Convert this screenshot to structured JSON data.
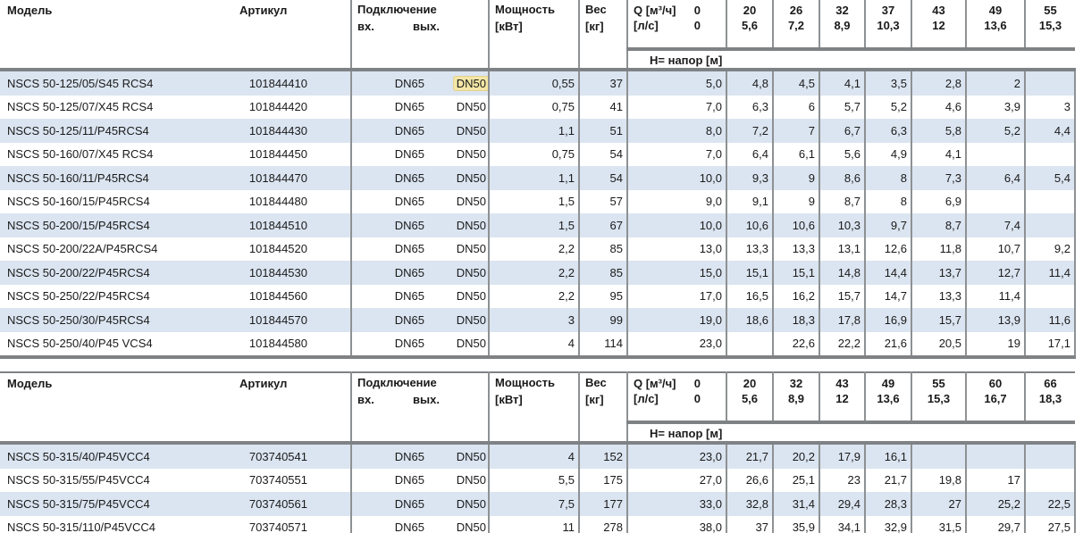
{
  "colors": {
    "stripe_blue": "#dbe5f1",
    "grid_gray": "#8e9193",
    "rule_gray": "#7f8285",
    "highlight_yellow": "#f3e6a6",
    "text": "#1a1a1a"
  },
  "tables": [
    {
      "headers": {
        "model": "Модель",
        "article": "Артикул",
        "connection": "Подключение",
        "inlet": "вх.",
        "outlet": "вых.",
        "power_l1": "Мощность",
        "power_l2": "[кВт]",
        "weight_l1": "Вес",
        "weight_l2": "[кг]"
      },
      "q_header": {
        "q_label": "Q [м³/ч]",
        "q_zero": "0",
        "ls_label": "[л/с]",
        "ls_zero": "0",
        "flows": [
          {
            "m3h": "20",
            "ls": "5,6"
          },
          {
            "m3h": "26",
            "ls": "7,2"
          },
          {
            "m3h": "32",
            "ls": "8,9"
          },
          {
            "m3h": "37",
            "ls": "10,3"
          },
          {
            "m3h": "43",
            "ls": "12"
          },
          {
            "m3h": "49",
            "ls": "13,6"
          },
          {
            "m3h": "55",
            "ls": "15,3"
          }
        ]
      },
      "h_band": "H= напор [м]",
      "rows": [
        {
          "model": "NSCS 50-125/05/S45 RCS4",
          "article": "101844410",
          "conn_in": "DN65",
          "conn_out": "DN50",
          "out_highlighted": true,
          "power": "0,55",
          "weight": "37",
          "heads": [
            "5,0",
            "4,8",
            "4,5",
            "4,1",
            "3,5",
            "2,8",
            "2",
            ""
          ]
        },
        {
          "model": "NSCS 50-125/07/X45 RCS4",
          "article": "101844420",
          "conn_in": "DN65",
          "conn_out": "DN50",
          "power": "0,75",
          "weight": "41",
          "heads": [
            "7,0",
            "6,3",
            "6",
            "5,7",
            "5,2",
            "4,6",
            "3,9",
            "3"
          ]
        },
        {
          "model": "NSCS 50-125/11/P45RCS4",
          "article": "101844430",
          "conn_in": "DN65",
          "conn_out": "DN50",
          "power": "1,1",
          "weight": "51",
          "heads": [
            "8,0",
            "7,2",
            "7",
            "6,7",
            "6,3",
            "5,8",
            "5,2",
            "4,4"
          ]
        },
        {
          "model": "NSCS 50-160/07/X45 RCS4",
          "article": "101844450",
          "conn_in": "DN65",
          "conn_out": "DN50",
          "power": "0,75",
          "weight": "54",
          "heads": [
            "7,0",
            "6,4",
            "6,1",
            "5,6",
            "4,9",
            "4,1",
            "",
            ""
          ]
        },
        {
          "model": "NSCS 50-160/11/P45RCS4",
          "article": "101844470",
          "conn_in": "DN65",
          "conn_out": "DN50",
          "power": "1,1",
          "weight": "54",
          "heads": [
            "10,0",
            "9,3",
            "9",
            "8,6",
            "8",
            "7,3",
            "6,4",
            "5,4"
          ]
        },
        {
          "model": "NSCS 50-160/15/P45RCS4",
          "article": "101844480",
          "conn_in": "DN65",
          "conn_out": "DN50",
          "power": "1,5",
          "weight": "57",
          "heads": [
            "9,0",
            "9,1",
            "9",
            "8,7",
            "8",
            "6,9",
            "",
            ""
          ]
        },
        {
          "model": "NSCS 50-200/15/P45RCS4",
          "article": "101844510",
          "conn_in": "DN65",
          "conn_out": "DN50",
          "power": "1,5",
          "weight": "67",
          "heads": [
            "10,0",
            "10,6",
            "10,6",
            "10,3",
            "9,7",
            "8,7",
            "7,4",
            ""
          ]
        },
        {
          "model": "NSCS 50-200/22A/P45RCS4",
          "article": "101844520",
          "conn_in": "DN65",
          "conn_out": "DN50",
          "power": "2,2",
          "weight": "85",
          "heads": [
            "13,0",
            "13,3",
            "13,3",
            "13,1",
            "12,6",
            "11,8",
            "10,7",
            "9,2"
          ]
        },
        {
          "model": "NSCS 50-200/22/P45RCS4",
          "article": "101844530",
          "conn_in": "DN65",
          "conn_out": "DN50",
          "power": "2,2",
          "weight": "85",
          "heads": [
            "15,0",
            "15,1",
            "15,1",
            "14,8",
            "14,4",
            "13,7",
            "12,7",
            "11,4"
          ]
        },
        {
          "model": "NSCS 50-250/22/P45RCS4",
          "article": "101844560",
          "conn_in": "DN65",
          "conn_out": "DN50",
          "power": "2,2",
          "weight": "95",
          "heads": [
            "17,0",
            "16,5",
            "16,2",
            "15,7",
            "14,7",
            "13,3",
            "11,4",
            ""
          ]
        },
        {
          "model": "NSCS 50-250/30/P45RCS4",
          "article": "101844570",
          "conn_in": "DN65",
          "conn_out": "DN50",
          "power": "3",
          "weight": "99",
          "heads": [
            "19,0",
            "18,6",
            "18,3",
            "17,8",
            "16,9",
            "15,7",
            "13,9",
            "11,6"
          ]
        },
        {
          "model": "NSCS 50-250/40/P45 VCS4",
          "article": "101844580",
          "conn_in": "DN65",
          "conn_out": "DN50",
          "power": "4",
          "weight": "114",
          "heads": [
            "23,0",
            "",
            "22,6",
            "22,2",
            "21,6",
            "20,5",
            "19",
            "17,1"
          ]
        }
      ]
    },
    {
      "headers": {
        "model": "Модель",
        "article": "Артикул",
        "connection": "Подключение",
        "inlet": "вх.",
        "outlet": "вых.",
        "power_l1": "Мощность",
        "power_l2": "[кВт]",
        "weight_l1": "Вес",
        "weight_l2": "[кг]"
      },
      "q_header": {
        "q_label": "Q [м³/ч]",
        "q_zero": "0",
        "ls_label": "[л/с]",
        "ls_zero": "0",
        "flows": [
          {
            "m3h": "20",
            "ls": "5,6"
          },
          {
            "m3h": "32",
            "ls": "8,9"
          },
          {
            "m3h": "43",
            "ls": "12"
          },
          {
            "m3h": "49",
            "ls": "13,6"
          },
          {
            "m3h": "55",
            "ls": "15,3"
          },
          {
            "m3h": "60",
            "ls": "16,7"
          },
          {
            "m3h": "66",
            "ls": "18,3"
          }
        ]
      },
      "h_band": "H= напор [м]",
      "rows": [
        {
          "model": "NSCS 50-315/40/P45VCC4",
          "article": "703740541",
          "conn_in": "DN65",
          "conn_out": "DN50",
          "power": "4",
          "weight": "152",
          "heads": [
            "23,0",
            "21,7",
            "20,2",
            "17,9",
            "16,1",
            "",
            "",
            ""
          ]
        },
        {
          "model": "NSCS 50-315/55/P45VCC4",
          "article": "703740551",
          "conn_in": "DN65",
          "conn_out": "DN50",
          "power": "5,5",
          "weight": "175",
          "heads": [
            "27,0",
            "26,6",
            "25,1",
            "23",
            "21,7",
            "19,8",
            "17",
            ""
          ]
        },
        {
          "model": "NSCS 50-315/75/P45VCC4",
          "article": "703740561",
          "conn_in": "DN65",
          "conn_out": "DN50",
          "power": "7,5",
          "weight": "177",
          "heads": [
            "33,0",
            "32,8",
            "31,4",
            "29,4",
            "28,3",
            "27",
            "25,2",
            "22,5"
          ]
        },
        {
          "model": "NSCS 50-315/110/P45VCC4",
          "article": "703740571",
          "conn_in": "DN65",
          "conn_out": "DN50",
          "power": "11",
          "weight": "278",
          "heads": [
            "38,0",
            "37",
            "35,9",
            "34,1",
            "32,9",
            "31,5",
            "29,7",
            "27,5"
          ]
        }
      ]
    }
  ]
}
